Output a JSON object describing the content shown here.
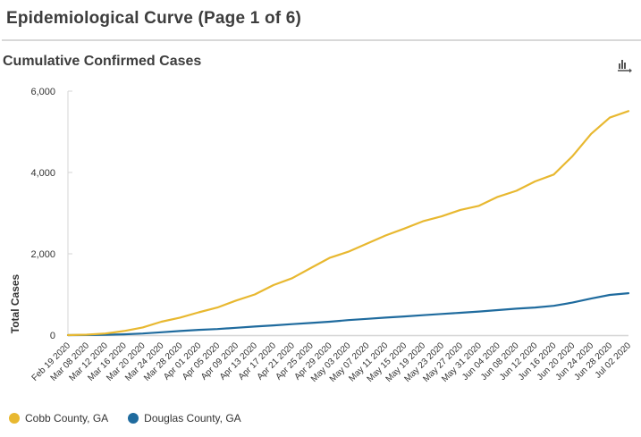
{
  "page": {
    "title": "Epidemiological Curve (Page 1 of 6)"
  },
  "chart_menu": {
    "icon": "chart-export-icon"
  },
  "chart_data": {
    "type": "line",
    "title": "Cumulative Confirmed Cases",
    "xlabel": "",
    "ylabel": "Total Cases",
    "ylim": [
      0,
      6000
    ],
    "yticks": [
      0,
      2000,
      4000,
      6000
    ],
    "ytick_labels": [
      "0",
      "2,000",
      "4,000",
      "6,000"
    ],
    "grid": false,
    "legend": "bottom-left",
    "categories": [
      "Feb 19 2020",
      "Mar 08 2020",
      "Mar 12 2020",
      "Mar 16 2020",
      "Mar 20 2020",
      "Mar 24 2020",
      "Mar 28 2020",
      "Apr 01 2020",
      "Apr 05 2020",
      "Apr 09 2020",
      "Apr 13 2020",
      "Apr 17 2020",
      "Apr 21 2020",
      "Apr 25 2020",
      "Apr 29 2020",
      "May 03 2020",
      "May 07 2020",
      "May 11 2020",
      "May 15 2020",
      "May 19 2020",
      "May 23 2020",
      "May 27 2020",
      "May 31 2020",
      "Jun 04 2020",
      "Jun 08 2020",
      "Jun 12 2020",
      "Jun 16 2020",
      "Jun 20 2020",
      "Jun 24 2020",
      "Jun 28 2020",
      "Jul 02 2020"
    ],
    "series": [
      {
        "name": "Cobb County, GA",
        "color": "#e8b830",
        "values": [
          0,
          10,
          40,
          100,
          190,
          330,
          430,
          560,
          680,
          850,
          1000,
          1230,
          1400,
          1650,
          1900,
          2050,
          2250,
          2450,
          2620,
          2800,
          2920,
          3080,
          3180,
          3400,
          3550,
          3780,
          3950,
          4400,
          4950,
          5350,
          5510
        ]
      },
      {
        "name": "Douglas County, GA",
        "color": "#1f6b9e",
        "values": [
          0,
          2,
          8,
          20,
          40,
          70,
          100,
          130,
          150,
          180,
          210,
          240,
          270,
          300,
          330,
          370,
          400,
          430,
          460,
          490,
          520,
          550,
          580,
          615,
          650,
          680,
          720,
          800,
          900,
          990,
          1030
        ]
      }
    ]
  }
}
